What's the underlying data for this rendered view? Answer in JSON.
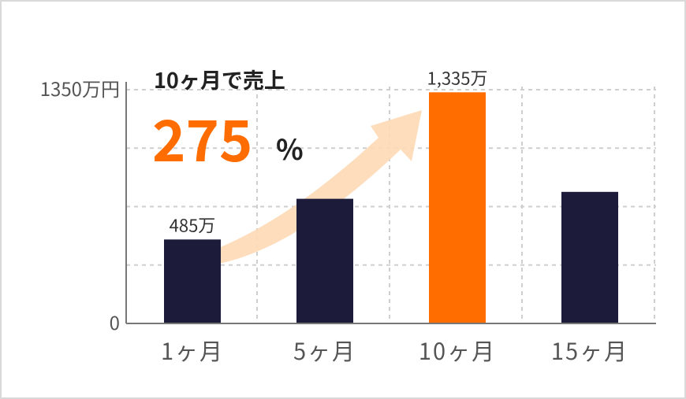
{
  "chart_data": {
    "type": "bar",
    "categories": [
      "1ヶ月",
      "5ヶ月",
      "10ヶ月",
      "15ヶ月"
    ],
    "values": [
      485,
      720,
      1335,
      760
    ],
    "value_labels": [
      "485万",
      null,
      "1,335万",
      null
    ],
    "colors": [
      "#1c1c3a",
      "#1c1c3a",
      "#ff6d00",
      "#1c1c3a"
    ],
    "ylim": [
      0,
      1350
    ],
    "yticks": [
      0,
      {
        "value": 1350,
        "label": "1350万円"
      }
    ],
    "ygrid": [
      337.5,
      675,
      1012.5,
      1350
    ],
    "grid": true,
    "annotation": {
      "text": "10ヶ月で売上",
      "number": "275",
      "unit": "%"
    }
  }
}
